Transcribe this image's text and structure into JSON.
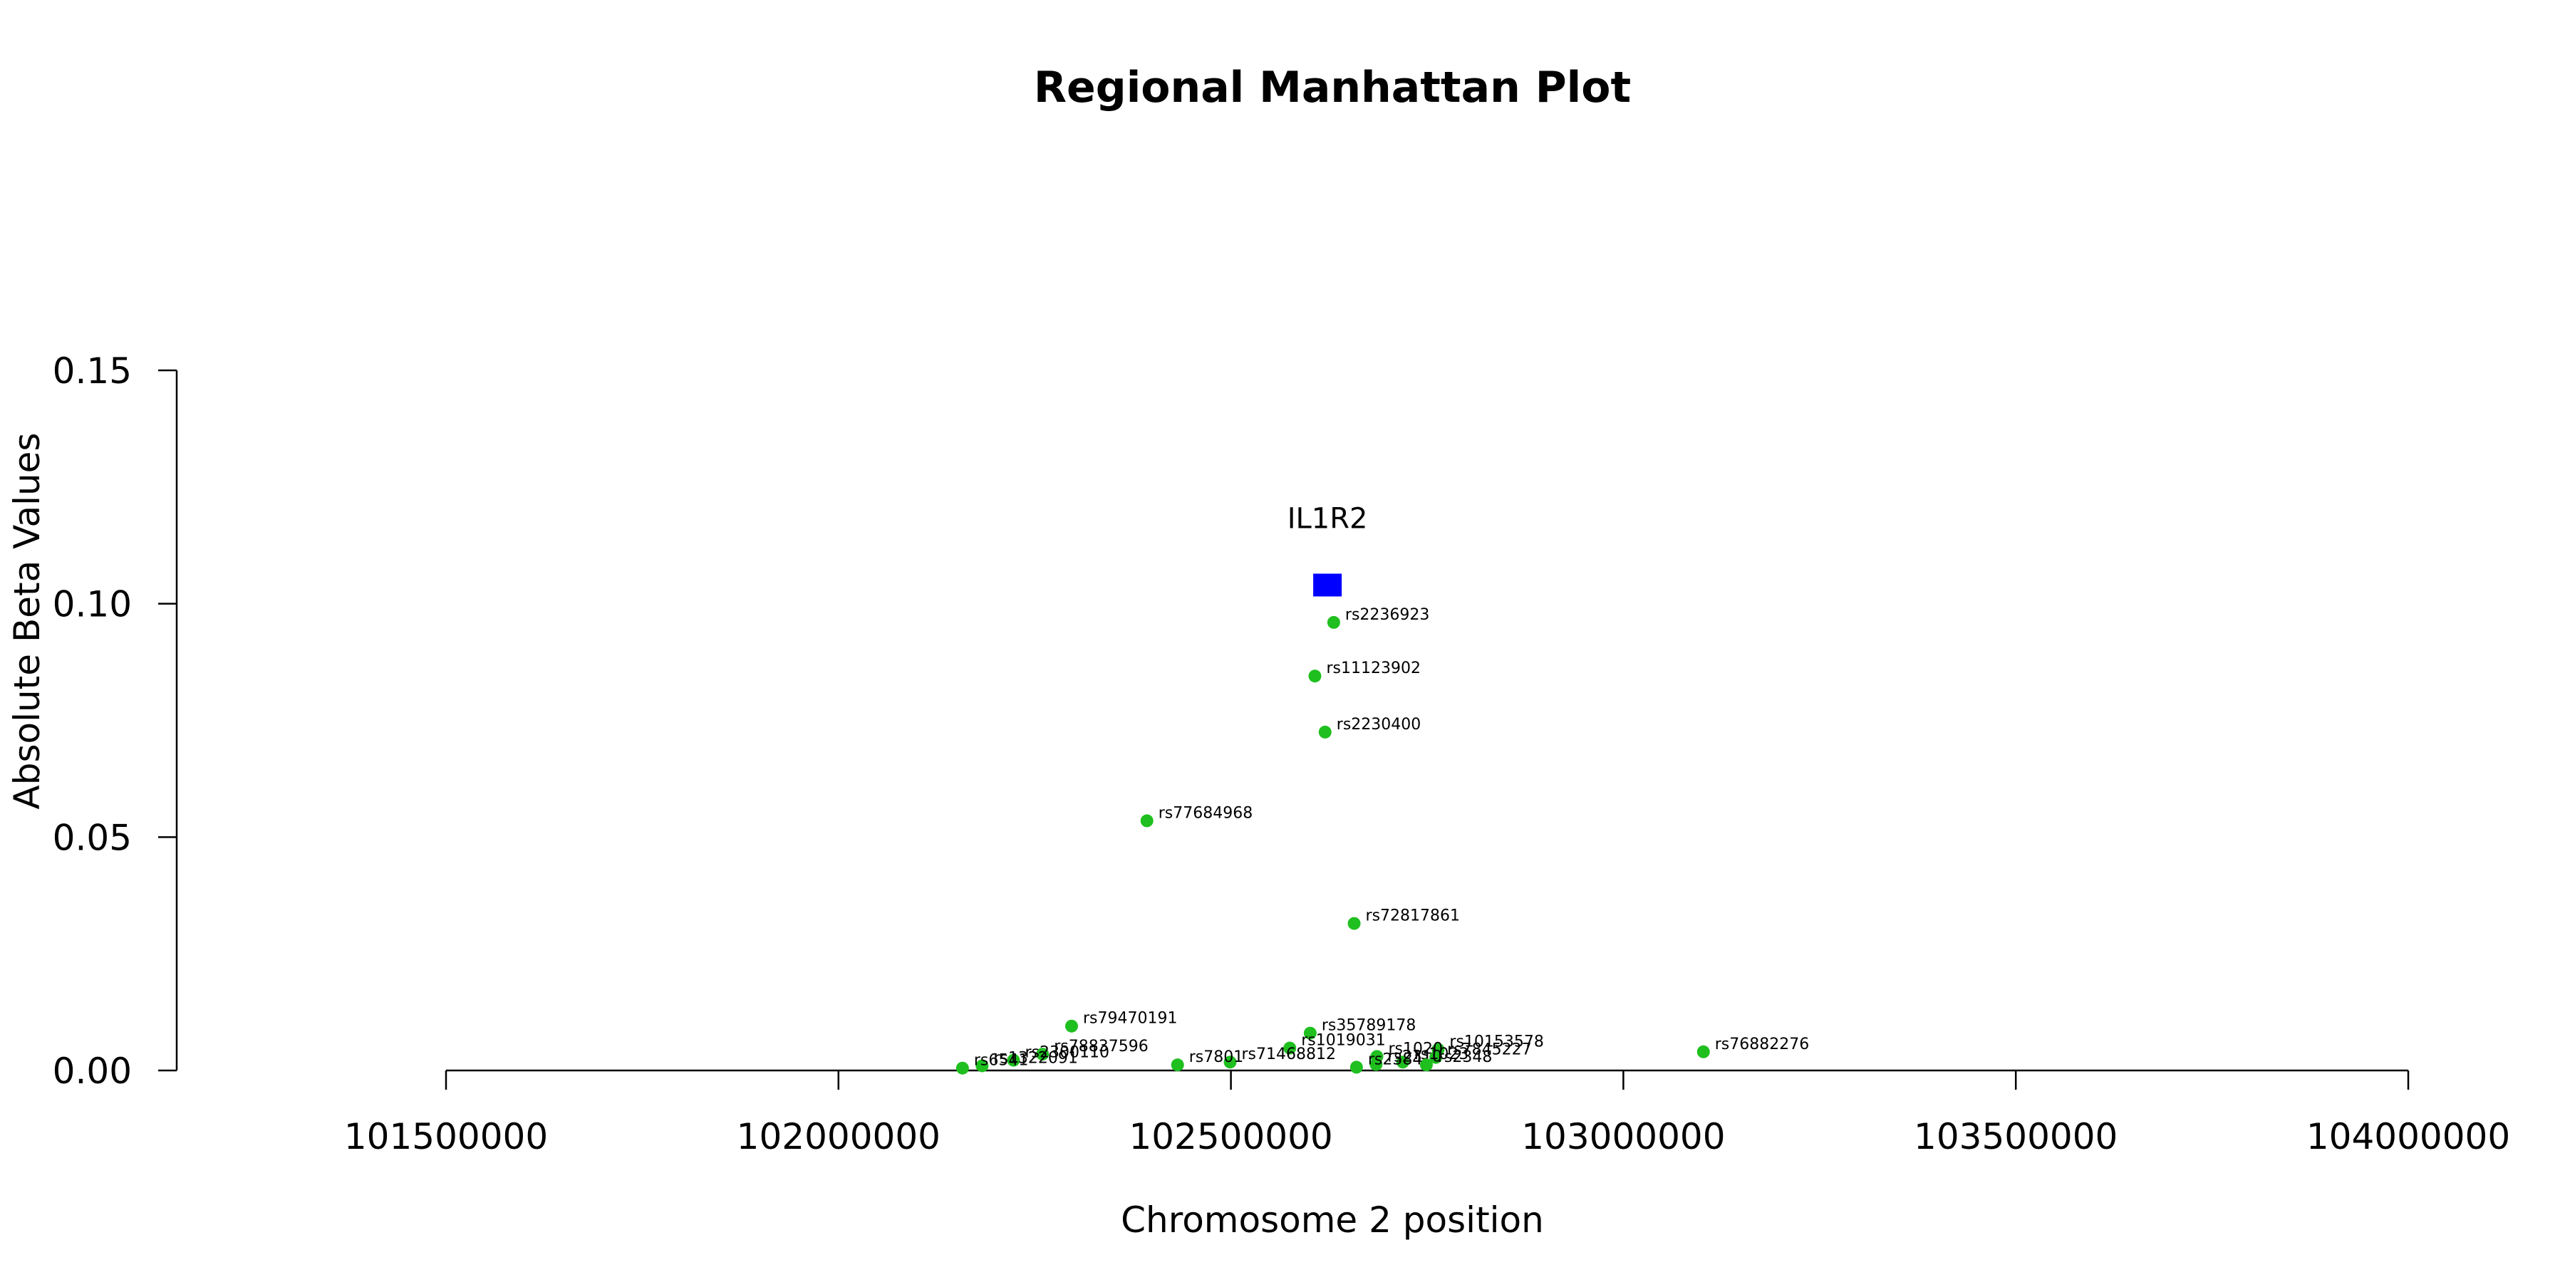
{
  "chart_data": {
    "type": "scatter",
    "title": "Regional Manhattan Plot",
    "xlabel": "Chromosome 2 position",
    "ylabel": "Absolute Beta Values",
    "xlim": [
      101500000,
      104000000
    ],
    "ylim": [
      0,
      0.15
    ],
    "x_ticks": [
      "101500000",
      "102000000",
      "102500000",
      "103000000",
      "103500000",
      "104000000"
    ],
    "y_ticks": [
      "0.00",
      "0.05",
      "0.10",
      "0.15"
    ],
    "grid": false,
    "legend": "none",
    "point_color": "#1fbf1f",
    "gene_color": "#0000ff",
    "gene": {
      "label": "IL1R2",
      "x": 102623000,
      "y": 0.104
    },
    "points": [
      {
        "label": "rs2236923",
        "x": 102631000,
        "y": 0.096
      },
      {
        "label": "rs11123902",
        "x": 102607000,
        "y": 0.0845
      },
      {
        "label": "rs2230400",
        "x": 102620000,
        "y": 0.0725
      },
      {
        "label": "rs77684968",
        "x": 102393000,
        "y": 0.0535
      },
      {
        "label": "rs72817861",
        "x": 102657000,
        "y": 0.0315
      },
      {
        "label": "rs79470191",
        "x": 102297000,
        "y": 0.0095
      },
      {
        "label": "rs35789178",
        "x": 102601000,
        "y": 0.008
      },
      {
        "label": "rs1019031",
        "x": 102575000,
        "y": 0.0048
      },
      {
        "label": "rs10153578",
        "x": 102764000,
        "y": 0.0045
      },
      {
        "label": "rs76882276",
        "x": 103102000,
        "y": 0.004
      },
      {
        "label": "rs78837596",
        "x": 102260000,
        "y": 0.0035
      },
      {
        "label": "rs1020",
        "x": 102686000,
        "y": 0.003
      },
      {
        "label": "rs7845227",
        "x": 102761000,
        "y": 0.0028
      },
      {
        "label": "rs71468812",
        "x": 102499000,
        "y": 0.0018
      },
      {
        "label": "rs1023",
        "x": 102719000,
        "y": 0.0018
      },
      {
        "label": "rs2300110",
        "x": 102223000,
        "y": 0.0022
      },
      {
        "label": "rs7801",
        "x": 102432000,
        "y": 0.0012
      },
      {
        "label": "rs2310",
        "x": 102685000,
        "y": 0.0013
      },
      {
        "label": "rs1322091",
        "x": 102183000,
        "y": 0.001
      },
      {
        "label": "rs2348",
        "x": 102749000,
        "y": 0.0012
      },
      {
        "label": "rs6541",
        "x": 102158000,
        "y": 0.0005
      },
      {
        "label": "rs2384",
        "x": 102660000,
        "y": 0.0007
      }
    ]
  }
}
